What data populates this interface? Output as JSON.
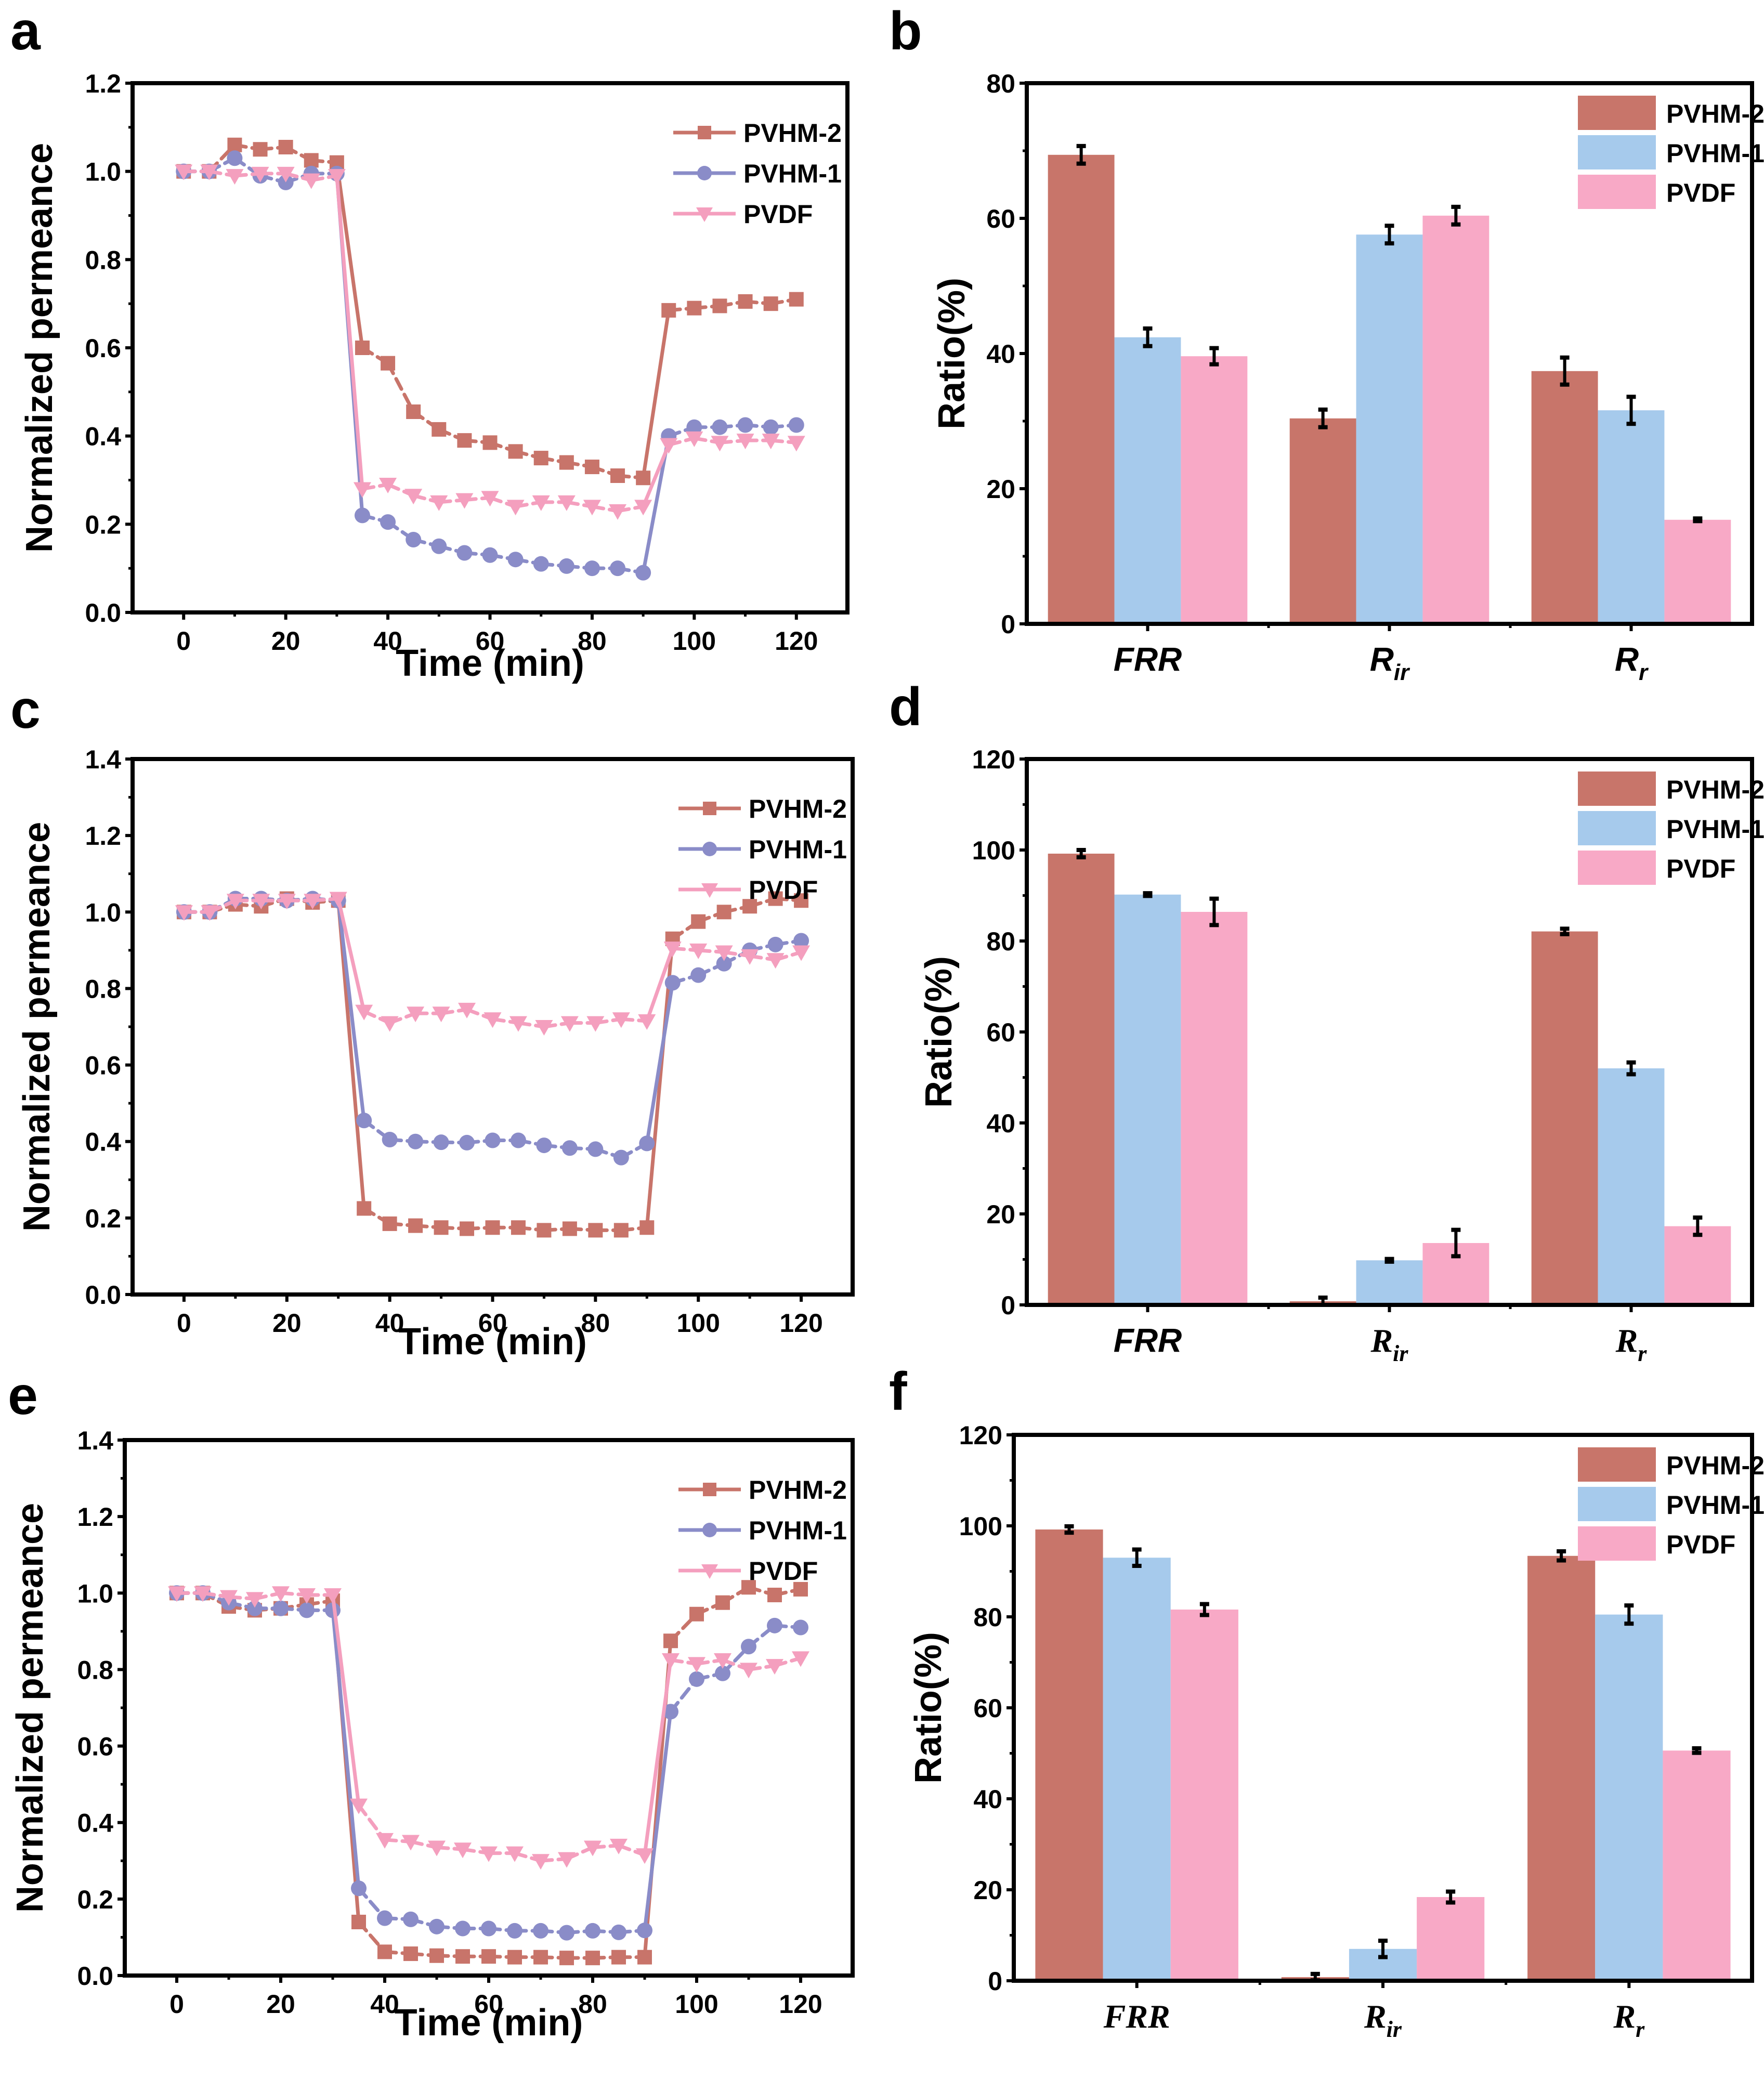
{
  "figure": {
    "panels": [
      "a",
      "b",
      "c",
      "d",
      "e",
      "f"
    ]
  },
  "colors": {
    "PVHM-2": "#C8746A",
    "PVHM-1": "#8A8CC8",
    "PVDF": "#F49FBE",
    "bar_PVHM-2": "#C8756A",
    "bar_PVHM-1": "#A6CAEC",
    "bar_PVDF": "#F8A9C6",
    "axis": "#000000"
  },
  "chart_data": [
    {
      "id": "a",
      "panel_label": "a",
      "type": "line",
      "xlabel": "Time (min)",
      "ylabel": "Normalized permeance",
      "xlim": [
        -10,
        130
      ],
      "ylim": [
        0,
        1.2
      ],
      "xticks": [
        0,
        20,
        40,
        60,
        80,
        100,
        120
      ],
      "yticks": [
        0.0,
        0.2,
        0.4,
        0.6,
        0.8,
        1.0,
        1.2
      ],
      "ytick_labels": [
        "0.0",
        "0.2",
        "0.4",
        "0.6",
        "0.8",
        "1.0",
        "1.2"
      ],
      "legend_position": "top-right",
      "x": [
        0,
        5,
        10,
        15,
        20,
        25,
        30,
        35,
        40,
        45,
        50,
        55,
        60,
        65,
        70,
        75,
        80,
        85,
        90,
        95,
        100,
        105,
        110,
        115,
        120
      ],
      "series": [
        {
          "name": "PVHM-2",
          "marker": "square",
          "values": [
            1.0,
            1.0,
            1.06,
            1.05,
            1.055,
            1.025,
            1.02,
            0.6,
            0.565,
            0.455,
            0.415,
            0.39,
            0.385,
            0.365,
            0.35,
            0.34,
            0.33,
            0.31,
            0.305,
            0.685,
            0.69,
            0.695,
            0.705,
            0.7,
            0.71
          ]
        },
        {
          "name": "PVHM-1",
          "marker": "circle",
          "values": [
            1.0,
            1.0,
            1.03,
            0.99,
            0.975,
            0.995,
            0.995,
            0.22,
            0.205,
            0.165,
            0.15,
            0.135,
            0.13,
            0.12,
            0.11,
            0.105,
            0.1,
            0.1,
            0.09,
            0.4,
            0.42,
            0.42,
            0.425,
            0.42,
            0.425
          ]
        },
        {
          "name": "PVDF",
          "marker": "triangle-down",
          "values": [
            1.0,
            1.0,
            0.99,
            0.995,
            0.995,
            0.98,
            0.99,
            0.28,
            0.29,
            0.265,
            0.25,
            0.255,
            0.26,
            0.24,
            0.25,
            0.25,
            0.24,
            0.23,
            0.24,
            0.38,
            0.395,
            0.385,
            0.39,
            0.39,
            0.385
          ]
        }
      ]
    },
    {
      "id": "b",
      "panel_label": "b",
      "type": "bar",
      "xlabel": "",
      "ylabel": "Ratio(%)",
      "ylim": [
        0,
        80
      ],
      "yticks": [
        0,
        20,
        40,
        60,
        80
      ],
      "ytick_labels": [
        "0",
        "20",
        "40",
        "60",
        "80"
      ],
      "legend_position": "top-right",
      "category_font": "sans",
      "categories": [
        {
          "main": "FRR",
          "sub": ""
        },
        {
          "main": "R",
          "sub": "ir"
        },
        {
          "main": "R",
          "sub": "r"
        }
      ],
      "series": [
        {
          "name": "PVHM-2",
          "values": [
            69.4,
            30.4,
            37.4
          ],
          "errors": [
            1.3,
            1.3,
            2.0
          ]
        },
        {
          "name": "PVHM-1",
          "values": [
            42.4,
            57.6,
            31.6
          ],
          "errors": [
            1.3,
            1.3,
            2.0
          ]
        },
        {
          "name": "PVDF",
          "values": [
            39.6,
            60.4,
            15.4
          ],
          "errors": [
            1.2,
            1.3,
            0.2
          ]
        }
      ]
    },
    {
      "id": "c",
      "panel_label": "c",
      "type": "line",
      "xlabel": "Time (min)",
      "ylabel": "Normalized permeance",
      "xlim": [
        -10,
        130
      ],
      "ylim": [
        0,
        1.4
      ],
      "xticks": [
        0,
        20,
        40,
        60,
        80,
        100,
        120
      ],
      "yticks": [
        0.0,
        0.2,
        0.4,
        0.6,
        0.8,
        1.0,
        1.2,
        1.4
      ],
      "ytick_labels": [
        "0.0",
        "0.2",
        "0.4",
        "0.6",
        "0.8",
        "1.0",
        "1.2",
        "1.4"
      ],
      "legend_position": "top-right",
      "x": [
        0,
        5,
        10,
        15,
        20,
        25,
        30,
        35,
        40,
        45,
        50,
        55,
        60,
        65,
        70,
        75,
        80,
        85,
        90,
        95,
        100,
        105,
        110,
        115,
        120
      ],
      "series": [
        {
          "name": "PVHM-2",
          "marker": "square",
          "values": [
            1.0,
            1.0,
            1.02,
            1.015,
            1.035,
            1.025,
            1.03,
            0.225,
            0.185,
            0.18,
            0.175,
            0.172,
            0.175,
            0.175,
            0.168,
            0.172,
            0.168,
            0.168,
            0.175,
            0.93,
            0.975,
            1.0,
            1.015,
            1.035,
            1.03
          ]
        },
        {
          "name": "PVHM-1",
          "marker": "circle",
          "values": [
            1.0,
            1.0,
            1.035,
            1.035,
            1.03,
            1.035,
            1.03,
            0.455,
            0.405,
            0.4,
            0.398,
            0.397,
            0.403,
            0.403,
            0.39,
            0.383,
            0.38,
            0.358,
            0.395,
            0.815,
            0.835,
            0.865,
            0.9,
            0.915,
            0.925
          ]
        },
        {
          "name": "PVDF",
          "marker": "triangle-down",
          "values": [
            1.0,
            1.0,
            1.03,
            1.03,
            1.03,
            1.03,
            1.035,
            0.74,
            0.71,
            0.735,
            0.735,
            0.745,
            0.72,
            0.71,
            0.7,
            0.71,
            0.71,
            0.72,
            0.715,
            0.905,
            0.9,
            0.895,
            0.885,
            0.875,
            0.895
          ]
        }
      ]
    },
    {
      "id": "d",
      "panel_label": "d",
      "type": "bar",
      "xlabel": "",
      "ylabel": "Ratio(%)",
      "ylim": [
        0,
        120
      ],
      "yticks": [
        0,
        20,
        40,
        60,
        80,
        100,
        120
      ],
      "ytick_labels": [
        "0",
        "20",
        "40",
        "60",
        "80",
        "100",
        "120"
      ],
      "legend_position": "top-right",
      "category_font": "mixed",
      "categories": [
        {
          "main": "FRR",
          "sub": ""
        },
        {
          "main": "R",
          "sub": "ir"
        },
        {
          "main": "R",
          "sub": "r"
        }
      ],
      "series": [
        {
          "name": "PVHM-2",
          "values": [
            99.2,
            0.8,
            82.1
          ],
          "errors": [
            0.8,
            0.8,
            0.6
          ]
        },
        {
          "name": "PVHM-1",
          "values": [
            90.2,
            9.8,
            52.0
          ],
          "errors": [
            0.3,
            0.3,
            1.3
          ]
        },
        {
          "name": "PVDF",
          "values": [
            86.4,
            13.6,
            17.3
          ],
          "errors": [
            2.9,
            2.9,
            1.9
          ]
        }
      ]
    },
    {
      "id": "e",
      "panel_label": "e",
      "type": "line",
      "xlabel": "Time (min)",
      "ylabel": "Normalized permeance",
      "xlim": [
        -10,
        130
      ],
      "ylim": [
        0,
        1.4
      ],
      "xticks": [
        0,
        20,
        40,
        60,
        80,
        100,
        120
      ],
      "yticks": [
        0.0,
        0.2,
        0.4,
        0.6,
        0.8,
        1.0,
        1.2,
        1.4
      ],
      "ytick_labels": [
        "0.0",
        "0.2",
        "0.4",
        "0.6",
        "0.8",
        "1.0",
        "1.2",
        "1.4"
      ],
      "legend_position": "top-right",
      "x": [
        0,
        5,
        10,
        15,
        20,
        25,
        30,
        35,
        40,
        45,
        50,
        55,
        60,
        65,
        70,
        75,
        80,
        85,
        90,
        95,
        100,
        105,
        110,
        115,
        120
      ],
      "series": [
        {
          "name": "PVHM-2",
          "marker": "square",
          "values": [
            1.0,
            1.0,
            0.965,
            0.955,
            0.96,
            0.97,
            0.98,
            0.14,
            0.062,
            0.057,
            0.052,
            0.05,
            0.05,
            0.048,
            0.048,
            0.046,
            0.046,
            0.048,
            0.048,
            0.875,
            0.945,
            0.975,
            1.015,
            0.995,
            1.01
          ]
        },
        {
          "name": "PVHM-1",
          "marker": "circle",
          "values": [
            1.0,
            1.0,
            0.975,
            0.96,
            0.96,
            0.955,
            0.955,
            0.228,
            0.15,
            0.147,
            0.128,
            0.123,
            0.123,
            0.117,
            0.117,
            0.112,
            0.117,
            0.113,
            0.118,
            0.69,
            0.775,
            0.79,
            0.86,
            0.915,
            0.91
          ]
        },
        {
          "name": "PVDF",
          "marker": "triangle-down",
          "values": [
            1.0,
            1.0,
            0.99,
            0.985,
            1.0,
            0.995,
            0.995,
            0.445,
            0.355,
            0.35,
            0.335,
            0.33,
            0.32,
            0.32,
            0.3,
            0.305,
            0.335,
            0.34,
            0.315,
            0.825,
            0.815,
            0.825,
            0.8,
            0.81,
            0.83
          ]
        }
      ]
    },
    {
      "id": "f",
      "panel_label": "f",
      "type": "bar",
      "xlabel": "",
      "ylabel": "Ratio(%)",
      "ylim": [
        0,
        120
      ],
      "yticks": [
        0,
        20,
        40,
        60,
        80,
        100,
        120
      ],
      "ytick_labels": [
        "0",
        "20",
        "40",
        "60",
        "80",
        "100",
        "120"
      ],
      "legend_position": "top-right",
      "category_font": "serif",
      "categories": [
        {
          "main": "FRR",
          "sub": ""
        },
        {
          "main": "R",
          "sub": "ir"
        },
        {
          "main": "R",
          "sub": "r"
        }
      ],
      "series": [
        {
          "name": "PVHM-2",
          "values": [
            99.2,
            0.8,
            93.4
          ],
          "errors": [
            0.7,
            0.7,
            1.0
          ]
        },
        {
          "name": "PVHM-1",
          "values": [
            93.0,
            7.0,
            80.5
          ],
          "errors": [
            1.8,
            1.8,
            2.0
          ]
        },
        {
          "name": "PVDF",
          "values": [
            81.6,
            18.4,
            50.6
          ],
          "errors": [
            1.2,
            1.2,
            0.5
          ]
        }
      ]
    }
  ]
}
